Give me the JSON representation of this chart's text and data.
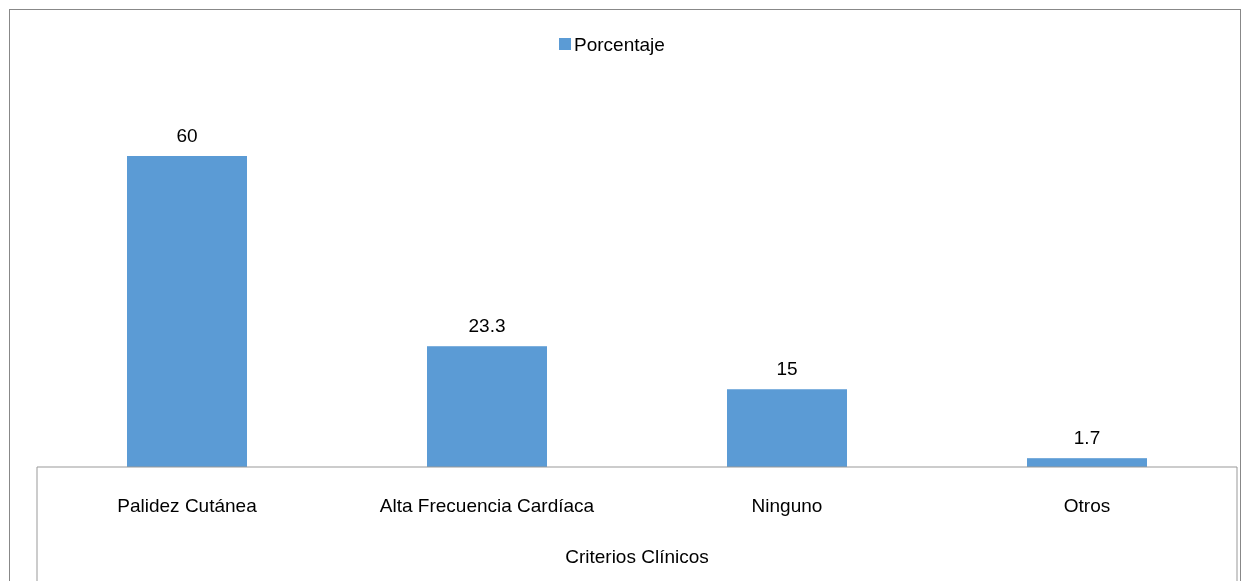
{
  "chart_data": {
    "type": "bar",
    "xlabel": "Criterios Clínicos",
    "categories": [
      "Palidez Cutánea",
      "Alta Frecuencia Cardíaca",
      "Ninguno",
      "Otros"
    ],
    "series": [
      {
        "name": "Porcentaje",
        "color": "#5b9bd5",
        "values": [
          60,
          23.3,
          15,
          1.7
        ]
      }
    ],
    "data_labels": true,
    "legend": "top",
    "grid": false
  }
}
